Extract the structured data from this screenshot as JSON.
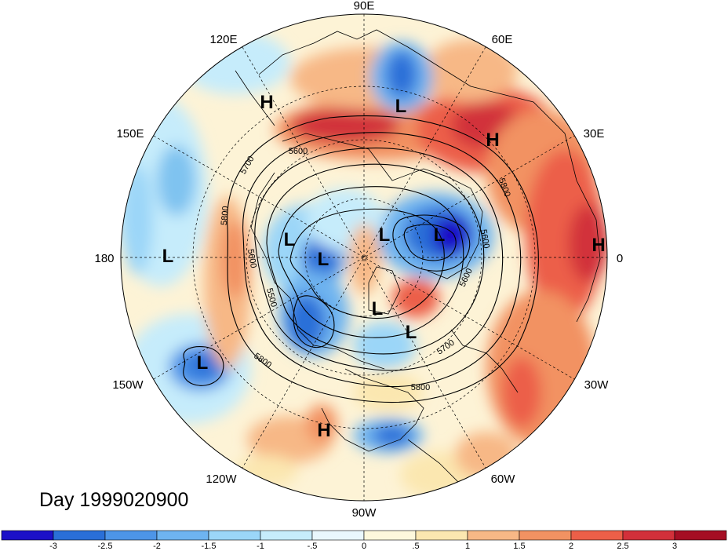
{
  "title": "Day 1999020900",
  "longitude_labels": {
    "lon_90e": "90E",
    "lon_60e": "60E",
    "lon_30e": "30E",
    "lon_0": "0",
    "lon_30w": "30W",
    "lon_60w": "60W",
    "lon_90w": "90W",
    "lon_120w": "120W",
    "lon_150w": "150W",
    "lon_180": "180",
    "lon_150e": "150E",
    "lon_120e": "120E"
  },
  "pressure_centers": [
    {
      "type": "H",
      "label": "H"
    },
    {
      "type": "L",
      "label": "L"
    },
    {
      "type": "H",
      "label": "H"
    },
    {
      "type": "H",
      "label": "H"
    },
    {
      "type": "L",
      "label": "L"
    },
    {
      "type": "L",
      "label": "L"
    },
    {
      "type": "L",
      "label": "L"
    },
    {
      "type": "L",
      "label": "L"
    },
    {
      "type": "L",
      "label": "L"
    },
    {
      "type": "L",
      "label": "L"
    },
    {
      "type": "L",
      "label": "L"
    },
    {
      "type": "L",
      "label": "L"
    },
    {
      "type": "H",
      "label": "H"
    }
  ],
  "contour_labels": {
    "c5600_north": "5600",
    "c5700_west": "5700",
    "c5800_west": "5800",
    "c5600_west": "5600",
    "c5500_west": "5500",
    "c5800_south": "5800",
    "c5700_south": "5700",
    "c5800_south2": "5800",
    "c5600_east": "5600",
    "c5600_east2": "5600",
    "c5800_east": "5800"
  },
  "colorbar": {
    "ticks": [
      "-3",
      "-2.5",
      "-2",
      "-1.5",
      "-1",
      "-.5",
      "0",
      ".5",
      "1",
      "1.5",
      "2",
      "2.5",
      "3"
    ],
    "colors": [
      "#1c10c8",
      "#2a6fd8",
      "#4d95e8",
      "#6eb4f0",
      "#9bd6f8",
      "#c6ecfb",
      "#e9f7fd",
      "#fdf8dc",
      "#fbe7b0",
      "#f7b886",
      "#f29262",
      "#ec5f48",
      "#d2303a",
      "#a50e23"
    ]
  }
}
